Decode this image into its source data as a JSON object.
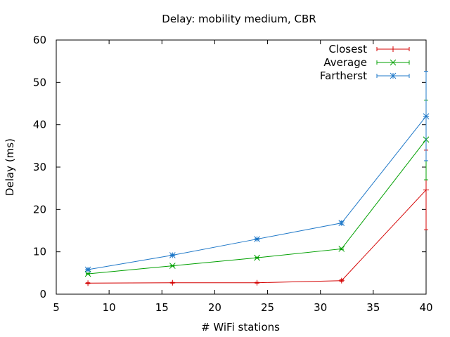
{
  "chart_data": {
    "type": "line",
    "title": "Delay: mobility medium, CBR",
    "xlabel": "# WiFi stations",
    "ylabel": "Delay (ms)",
    "xlim": [
      5,
      40
    ],
    "ylim": [
      0,
      60
    ],
    "x_ticks": [
      5,
      10,
      15,
      20,
      25,
      30,
      35,
      40
    ],
    "y_ticks": [
      0,
      10,
      20,
      30,
      40,
      50,
      60
    ],
    "grid": false,
    "legend_position": "top-right",
    "x": [
      8,
      16,
      24,
      32,
      40
    ],
    "series": [
      {
        "name": "Closest",
        "color": "#d40000",
        "marker": "plus",
        "values": [
          2.6,
          2.7,
          2.7,
          3.2,
          24.6
        ],
        "error_low": [
          2.5,
          2.6,
          2.6,
          3.0,
          15.2
        ],
        "error_high": [
          2.7,
          2.8,
          2.8,
          3.4,
          34.0
        ]
      },
      {
        "name": "Average",
        "color": "#00a000",
        "marker": "cross",
        "values": [
          4.8,
          6.7,
          8.6,
          10.7,
          36.5
        ],
        "error_low": [
          4.7,
          6.6,
          8.5,
          10.5,
          27.0
        ],
        "error_high": [
          4.9,
          6.8,
          8.7,
          10.9,
          45.8
        ]
      },
      {
        "name": "Fartherst",
        "color": "#1f78c8",
        "marker": "star",
        "values": [
          5.8,
          9.2,
          13.0,
          16.8,
          42.0
        ],
        "error_low": [
          5.6,
          9.0,
          12.8,
          16.4,
          31.5
        ],
        "error_high": [
          6.0,
          9.4,
          13.2,
          17.2,
          52.6
        ]
      }
    ]
  }
}
